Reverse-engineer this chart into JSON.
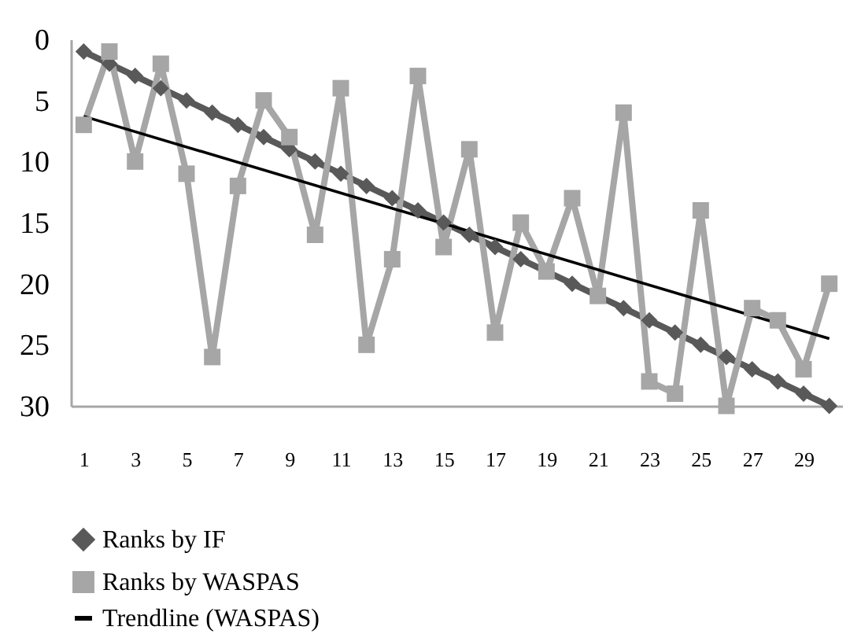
{
  "chart_data": {
    "type": "line",
    "x": [
      1,
      2,
      3,
      4,
      5,
      6,
      7,
      8,
      9,
      10,
      11,
      12,
      13,
      14,
      15,
      16,
      17,
      18,
      19,
      20,
      21,
      22,
      23,
      24,
      25,
      26,
      27,
      28,
      29,
      30
    ],
    "xlim": [
      0.5,
      30.5
    ],
    "xticks": [
      1,
      3,
      5,
      7,
      9,
      11,
      13,
      15,
      17,
      19,
      21,
      23,
      25,
      27,
      29
    ],
    "ylim": [
      30,
      0
    ],
    "yticks": [
      0,
      5,
      10,
      15,
      20,
      25,
      30
    ],
    "grid": false,
    "legend": "bottom",
    "line_style": "solid",
    "series": [
      {
        "name": "Ranks by IF",
        "color": "#595959",
        "marker": "diamond",
        "values": [
          1,
          2,
          3,
          4,
          5,
          6,
          7,
          8,
          9,
          10,
          11,
          12,
          13,
          14,
          15,
          16,
          17,
          18,
          19,
          20,
          21,
          22,
          23,
          24,
          25,
          26,
          27,
          28,
          29,
          30
        ]
      },
      {
        "name": "Ranks by WASPAS",
        "color": "#a6a6a6",
        "marker": "square",
        "values": [
          7,
          1,
          10,
          2,
          11,
          26,
          12,
          5,
          8,
          16,
          4,
          25,
          18,
          3,
          17,
          9,
          24,
          15,
          19,
          13,
          21,
          6,
          28,
          29,
          14,
          30,
          22,
          23,
          27,
          20
        ]
      },
      {
        "name": "Trendline (WASPAS)",
        "color": "#000000",
        "marker": "none",
        "x": [
          1,
          30
        ],
        "values": [
          6.3,
          24.5
        ]
      }
    ]
  }
}
